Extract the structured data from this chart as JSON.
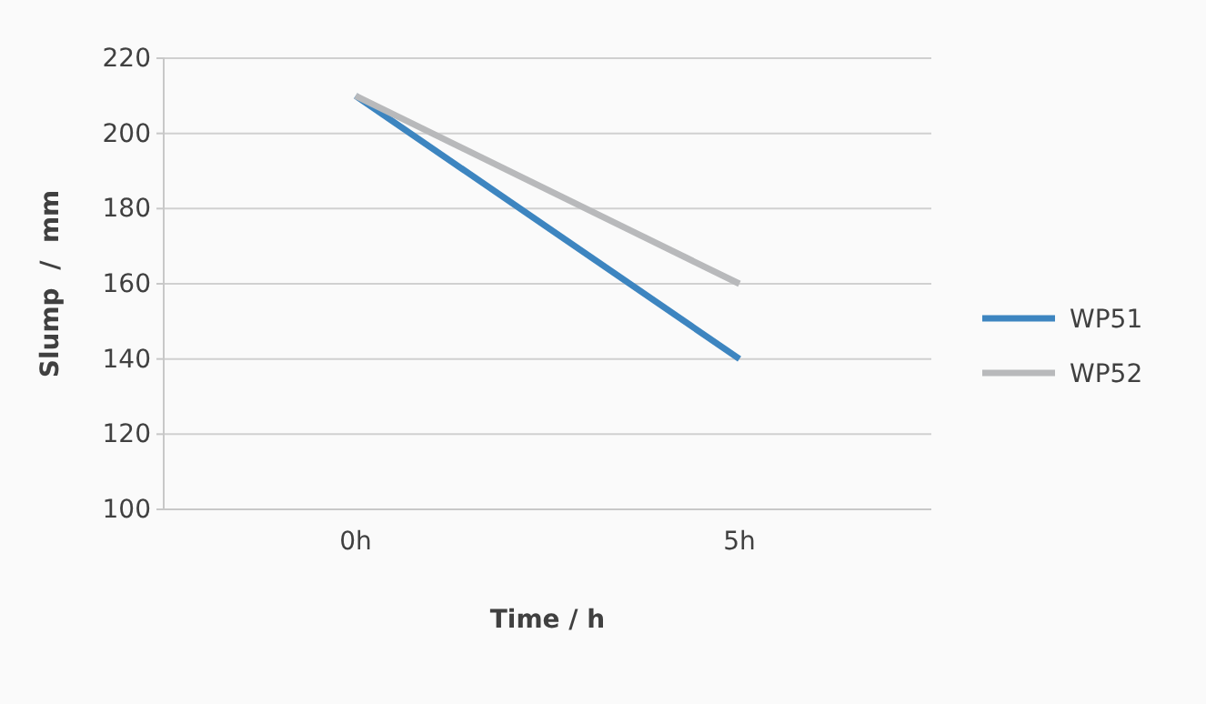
{
  "chart_data": {
    "type": "line",
    "xlabel": "Time / h",
    "ylabel": "Slump  /  mm",
    "categories": [
      "0h",
      "5h"
    ],
    "series": [
      {
        "name": "WP51",
        "color": "#3d85c0",
        "values": [
          210,
          140
        ]
      },
      {
        "name": "WP52",
        "color": "#b8b9bb",
        "values": [
          210,
          160
        ]
      }
    ],
    "ylim": [
      100,
      220
    ],
    "yticks": [
      100,
      120,
      140,
      160,
      180,
      200,
      220
    ],
    "grid": "y",
    "legend": "right",
    "marker": "none",
    "line_style": "solid"
  }
}
